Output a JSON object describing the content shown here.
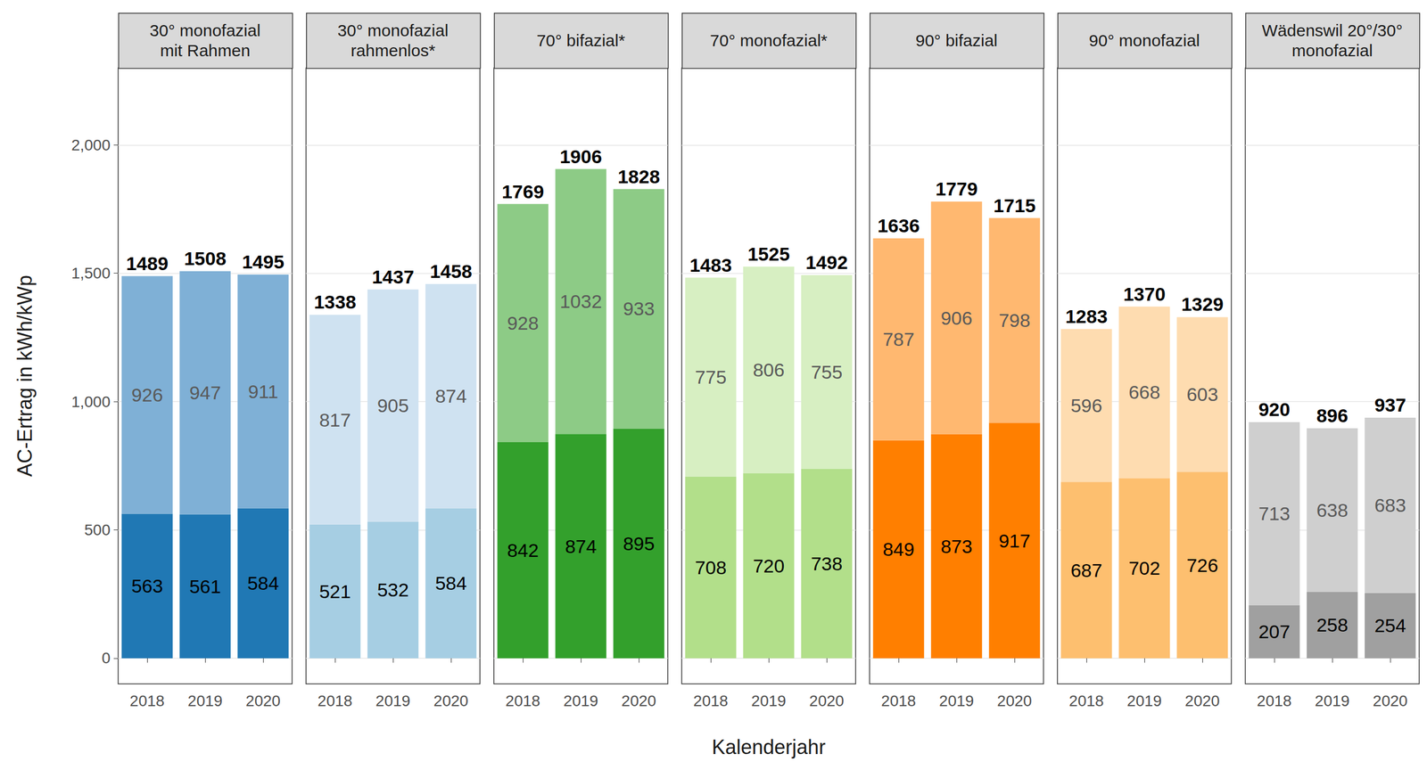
{
  "chart_data": [
    {
      "type": "bar",
      "title": "30° monofazial\nmit Rahmen",
      "y_label": "AC-Ertrag in kWh/kWp",
      "categories": [
        "2018",
        "2019",
        "2020"
      ],
      "series": [
        {
          "color": "#2078b4",
          "values": [
            563,
            561,
            584
          ]
        },
        {
          "color": "#7fb0d6",
          "values": [
            926,
            947,
            911
          ]
        }
      ],
      "totals": [
        1489,
        1508,
        1495
      ],
      "ylim": [
        -100,
        2300
      ],
      "yticks": [
        0,
        500,
        1000,
        1500,
        2000
      ],
      "grid": true,
      "stacked": true,
      "data_labels": true
    },
    {
      "type": "bar",
      "title": "30° monofazial\nrahmenlos*",
      "categories": [
        "2018",
        "2019",
        "2020"
      ],
      "series": [
        {
          "color": "#a6cee3",
          "values": [
            521,
            532,
            584
          ]
        },
        {
          "color": "#cfe2f1",
          "values": [
            817,
            905,
            874
          ]
        }
      ],
      "totals": [
        1338,
        1437,
        1458
      ],
      "ylim": [
        -100,
        2300
      ],
      "yticks": [
        0,
        500,
        1000,
        1500,
        2000
      ],
      "grid": true,
      "stacked": true,
      "data_labels": true,
      "tick_labels": "x"
    },
    {
      "type": "bar",
      "title": "70° bifazial*",
      "categories": [
        "2018",
        "2019",
        "2020"
      ],
      "series": [
        {
          "color": "#33a02c",
          "values": [
            842,
            874,
            895
          ]
        },
        {
          "color": "#8dcb86",
          "values": [
            928,
            1032,
            933
          ]
        }
      ],
      "totals": [
        1769,
        1906,
        1828
      ],
      "ylim": [
        -100,
        2300
      ],
      "yticks": [
        0,
        500,
        1000,
        1500,
        2000
      ],
      "grid": true,
      "stacked": true,
      "data_labels": true,
      "tick_labels": "x"
    },
    {
      "type": "bar",
      "title": "70° monofazial*",
      "x_label": "Kalenderjahr",
      "categories": [
        "2018",
        "2019",
        "2020"
      ],
      "series": [
        {
          "color": "#b2df8a",
          "values": [
            708,
            720,
            738
          ]
        },
        {
          "color": "#d7efc2",
          "values": [
            775,
            806,
            755
          ]
        }
      ],
      "totals": [
        1483,
        1525,
        1492
      ],
      "ylim": [
        -100,
        2300
      ],
      "yticks": [
        0,
        500,
        1000,
        1500,
        2000
      ],
      "grid": true,
      "stacked": true,
      "data_labels": true,
      "tick_labels": "x"
    },
    {
      "type": "bar",
      "title": "90° bifazial",
      "categories": [
        "2018",
        "2019",
        "2020"
      ],
      "series": [
        {
          "color": "#ff7f00",
          "values": [
            849,
            873,
            917
          ]
        },
        {
          "color": "#ffb870",
          "values": [
            787,
            906,
            798
          ]
        }
      ],
      "totals": [
        1636,
        1779,
        1715
      ],
      "ylim": [
        -100,
        2300
      ],
      "yticks": [
        0,
        500,
        1000,
        1500,
        2000
      ],
      "grid": true,
      "stacked": true,
      "data_labels": true,
      "tick_labels": "x"
    },
    {
      "type": "bar",
      "title": "90° monofazial",
      "categories": [
        "2018",
        "2019",
        "2020"
      ],
      "series": [
        {
          "color": "#fdbf6f",
          "values": [
            687,
            702,
            726
          ]
        },
        {
          "color": "#fedcb0",
          "values": [
            596,
            668,
            603
          ]
        }
      ],
      "totals": [
        1283,
        1370,
        1329
      ],
      "ylim": [
        -100,
        2300
      ],
      "yticks": [
        0,
        500,
        1000,
        1500,
        2000
      ],
      "grid": true,
      "stacked": true,
      "data_labels": true,
      "tick_labels": "x"
    },
    {
      "type": "bar",
      "title": "Wädenswil 20°/30°\nmonofazial",
      "categories": [
        "2018",
        "2019",
        "2020"
      ],
      "series": [
        {
          "color": "#a0a0a0",
          "values": [
            207,
            258,
            254
          ]
        },
        {
          "color": "#cfcfcf",
          "values": [
            713,
            638,
            683
          ]
        }
      ],
      "totals": [
        920,
        896,
        937
      ],
      "ylim": [
        -100,
        2300
      ],
      "yticks": [
        0,
        500,
        1000,
        1500,
        2000
      ],
      "grid": true,
      "stacked": true,
      "data_labels": true,
      "tick_labels": "x"
    }
  ]
}
